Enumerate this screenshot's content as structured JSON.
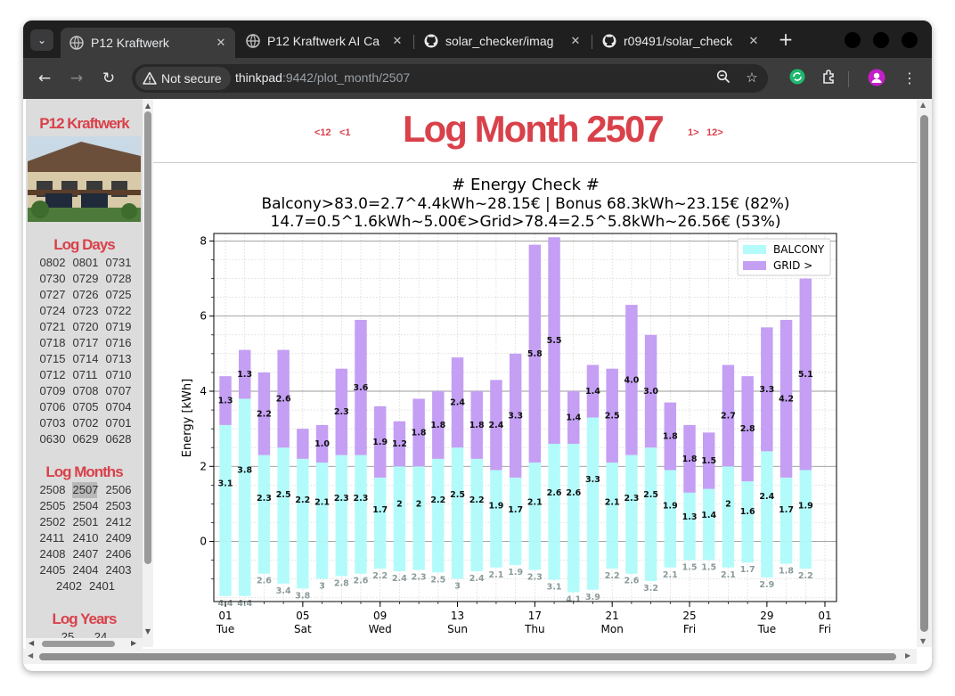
{
  "browser": {
    "tabs": [
      {
        "label": "P12 Kraftwerk",
        "active": true,
        "icon": "globe-icon"
      },
      {
        "label": "P12 Kraftwerk AI Ca",
        "active": false,
        "icon": "globe-icon"
      },
      {
        "label": "solar_checker/imag",
        "active": false,
        "icon": "github-icon"
      },
      {
        "label": "r09491/solar_check",
        "active": false,
        "icon": "github-icon"
      }
    ],
    "security_label": "Not secure",
    "url_host": "thinkpad",
    "url_path": ":9442/plot_month/2507"
  },
  "sidebar": {
    "title": "P12 Kraftwerk",
    "days_heading": "Log Days",
    "days": [
      [
        "0802",
        "0801",
        "0731"
      ],
      [
        "0730",
        "0729",
        "0728"
      ],
      [
        "0727",
        "0726",
        "0725"
      ],
      [
        "0724",
        "0723",
        "0722"
      ],
      [
        "0721",
        "0720",
        "0719"
      ],
      [
        "0718",
        "0717",
        "0716"
      ],
      [
        "0715",
        "0714",
        "0713"
      ],
      [
        "0712",
        "0711",
        "0710"
      ],
      [
        "0709",
        "0708",
        "0707"
      ],
      [
        "0706",
        "0705",
        "0704"
      ],
      [
        "0703",
        "0702",
        "0701"
      ],
      [
        "0630",
        "0629",
        "0628"
      ]
    ],
    "months_heading": "Log Months",
    "months": [
      [
        "2508",
        "2507",
        "2506"
      ],
      [
        "2505",
        "2504",
        "2503"
      ],
      [
        "2502",
        "2501",
        "2412"
      ],
      [
        "2411",
        "2410",
        "2409"
      ],
      [
        "2408",
        "2407",
        "2406"
      ],
      [
        "2405",
        "2404",
        "2403"
      ],
      [
        "2402",
        "2401"
      ]
    ],
    "selected_month": "2507",
    "years_heading": "Log Years",
    "years": [
      "25",
      "24"
    ]
  },
  "header": {
    "title": "Log Month 2507",
    "prev12": "<12",
    "prev1": "<1",
    "next1": "1>",
    "next12": "12>"
  },
  "chart_data": {
    "type": "bar",
    "title_lines": [
      "# Energy Check #",
      "Balcony>83.0=2.7^4.4kWh~28.15€ | Bonus 68.3kWh~23.15€ (82%)",
      "14.7=0.5^1.6kWh~5.00€>Grid>78.4=2.5^5.8kWh~26.56€ (53%)"
    ],
    "ylabel": "Energy [kWh]",
    "xlabel": "",
    "ylim": [
      -1.6,
      8.2
    ],
    "yticks": [
      0,
      2,
      4,
      6,
      8
    ],
    "grid": true,
    "legend_placement": "top-right",
    "xticks": [
      {
        "day": 1,
        "label": "01",
        "sub": "Tue"
      },
      {
        "day": 5,
        "label": "05",
        "sub": "Sat"
      },
      {
        "day": 9,
        "label": "09",
        "sub": "Wed"
      },
      {
        "day": 13,
        "label": "13",
        "sub": "Sun"
      },
      {
        "day": 17,
        "label": "17",
        "sub": "Thu"
      },
      {
        "day": 21,
        "label": "21",
        "sub": "Mon"
      },
      {
        "day": 25,
        "label": "25",
        "sub": "Fri"
      },
      {
        "day": 29,
        "label": "29",
        "sub": "Tue"
      },
      {
        "day": 32,
        "label": "01",
        "sub": "Fri"
      }
    ],
    "days": [
      1,
      2,
      3,
      4,
      5,
      6,
      7,
      8,
      9,
      10,
      11,
      12,
      13,
      14,
      15,
      16,
      17,
      18,
      19,
      20,
      21,
      22,
      23,
      24,
      25,
      26,
      27,
      28,
      29,
      30,
      31
    ],
    "series": [
      {
        "name": "BALCONY",
        "color": "#b3fbfb",
        "values": [
          3.1,
          3.8,
          2.3,
          2.5,
          2.2,
          2.1,
          2.3,
          2.3,
          1.7,
          2.0,
          2.0,
          2.2,
          2.5,
          2.2,
          1.9,
          1.7,
          2.1,
          2.6,
          2.6,
          3.3,
          2.1,
          2.3,
          2.5,
          1.9,
          1.3,
          1.4,
          2.0,
          1.6,
          2.4,
          1.7,
          1.9
        ]
      },
      {
        "name": "GRID >",
        "color": "#c49ff4",
        "values": [
          1.3,
          1.3,
          2.2,
          2.6,
          0.8,
          1.0,
          2.3,
          3.6,
          1.9,
          1.2,
          1.8,
          1.8,
          2.4,
          1.8,
          2.4,
          3.3,
          5.8,
          5.5,
          1.4,
          1.4,
          2.5,
          4.0,
          3.0,
          1.8,
          1.8,
          1.5,
          2.7,
          2.8,
          3.3,
          4.2,
          5.1
        ]
      },
      {
        "name": "",
        "values": [
          4.4,
          4.4,
          2.6,
          3.4,
          3.8,
          3.0,
          2.8,
          2.6,
          2.2,
          2.4,
          2.3,
          2.5,
          3.0,
          2.4,
          2.1,
          1.9,
          2.3,
          3.1,
          4.1,
          3.9,
          2.2,
          2.6,
          3.2,
          2.1,
          1.5,
          1.5,
          2.1,
          1.7,
          2.9,
          1.8,
          2.2
        ]
      }
    ],
    "grid_labels": [
      "1.3",
      "1.3",
      "2.2",
      "2.6",
      "",
      "1.0",
      "2.3",
      "3.6",
      "1.9",
      "1.2",
      "1.8",
      "1.8",
      "2.4",
      "1.8",
      "2.4",
      "3.3",
      "5.8",
      "5.5",
      "1.4",
      "1.4",
      "2.5",
      "4.0",
      "3.0",
      "1.8",
      "1.8",
      "1.5",
      "2.7",
      "2.8",
      "3.3",
      "4.2",
      "5.1"
    ]
  }
}
